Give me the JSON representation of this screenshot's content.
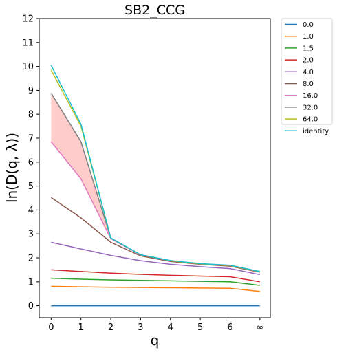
{
  "chart_data": {
    "type": "line",
    "title": "SB2_CCG",
    "xlabel": "q",
    "ylabel": "ln(D(q, λ))",
    "x": [
      0,
      1,
      2,
      3,
      4,
      5,
      6,
      7
    ],
    "x_tick_labels": [
      "0",
      "1",
      "2",
      "3",
      "4",
      "5",
      "6",
      "∞"
    ],
    "xlim": [
      -0.4,
      7.35
    ],
    "ylim": [
      -0.5,
      12
    ],
    "y_ticks": [
      0,
      1,
      2,
      3,
      4,
      5,
      6,
      7,
      8,
      9,
      10,
      11,
      12
    ],
    "grid": false,
    "legend_position": "outside-top-right",
    "series": [
      {
        "name": "0.0",
        "color": "#1f77b4",
        "values": [
          0.0,
          0.0,
          0.0,
          0.0,
          0.0,
          0.0,
          0.0,
          0.0
        ]
      },
      {
        "name": "1.0",
        "color": "#ff7f0e",
        "values": [
          0.81,
          0.79,
          0.77,
          0.76,
          0.75,
          0.74,
          0.73,
          0.6
        ]
      },
      {
        "name": "1.5",
        "color": "#2ca02c",
        "values": [
          1.15,
          1.11,
          1.08,
          1.06,
          1.04,
          1.02,
          1.0,
          0.85
        ]
      },
      {
        "name": "2.0",
        "color": "#d62728",
        "values": [
          1.5,
          1.43,
          1.36,
          1.31,
          1.27,
          1.24,
          1.21,
          1.0
        ]
      },
      {
        "name": "4.0",
        "color": "#9467bd",
        "values": [
          2.65,
          2.37,
          2.1,
          1.88,
          1.73,
          1.63,
          1.55,
          1.3
        ]
      },
      {
        "name": "8.0",
        "color": "#8c564b",
        "values": [
          4.52,
          3.67,
          2.65,
          2.08,
          1.85,
          1.73,
          1.65,
          1.4
        ]
      },
      {
        "name": "16.0",
        "color": "#e377c2",
        "values": [
          6.85,
          5.3,
          2.8,
          2.12,
          1.88,
          1.75,
          1.68,
          1.42
        ]
      },
      {
        "name": "32.0",
        "color": "#7f7f7f",
        "values": [
          8.88,
          6.85,
          2.82,
          2.13,
          1.88,
          1.75,
          1.68,
          1.42
        ]
      },
      {
        "name": "64.0",
        "color": "#bcbd22",
        "values": [
          9.85,
          7.5,
          2.83,
          2.13,
          1.88,
          1.75,
          1.68,
          1.42
        ]
      },
      {
        "name": "identity",
        "color": "#17becf",
        "values": [
          10.05,
          7.58,
          2.83,
          2.13,
          1.89,
          1.76,
          1.69,
          1.43
        ]
      }
    ],
    "shaded_region": {
      "color": "#ffcccc",
      "between_series": [
        "16.0",
        "32.0"
      ]
    }
  }
}
